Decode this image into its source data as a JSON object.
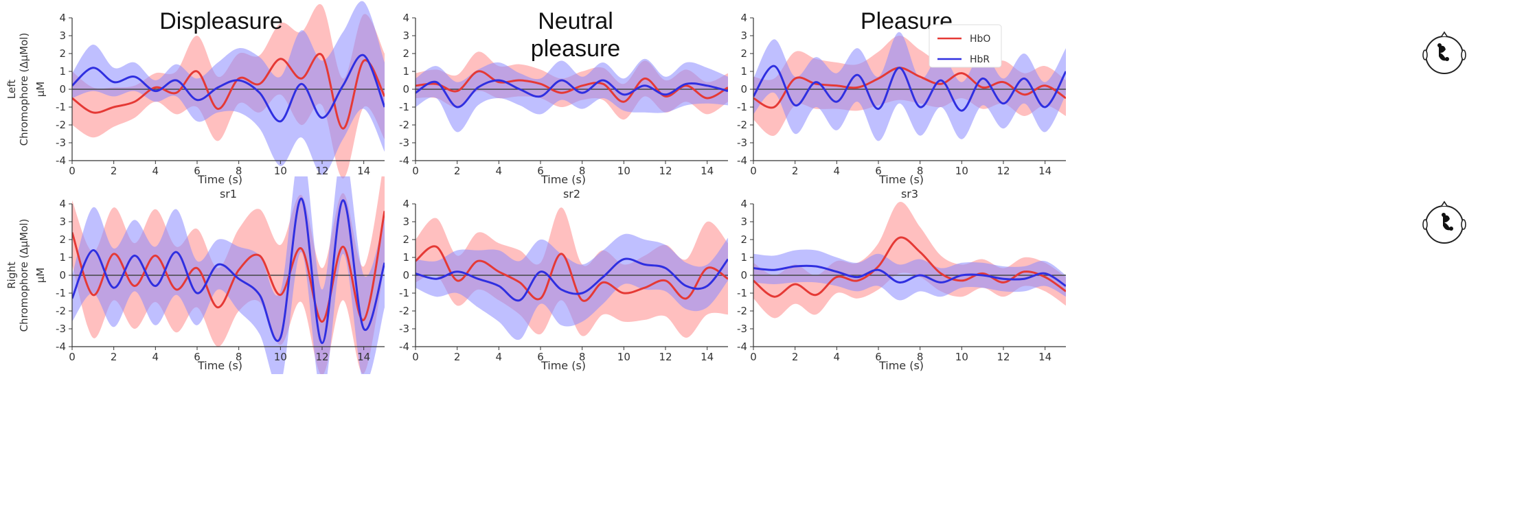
{
  "figure": {
    "condition_titles": [
      "Displeasure",
      "Neutral\npleasure",
      "Pleasure"
    ],
    "row_ylabels": [
      [
        "Left",
        "Chromophore (ΔμMol)",
        "μM"
      ],
      [
        "Right",
        "Chromophore (ΔμMol)",
        "μM"
      ]
    ],
    "subplot_titles": [
      "sr1",
      "sr2",
      "sr3"
    ],
    "legend": [
      {
        "label": "HbO",
        "color": "#e53935"
      },
      {
        "label": "HbR",
        "color": "#2f2fe0"
      }
    ],
    "colors": {
      "hbo": "#e53935",
      "hbo_band": "#ff8a8a",
      "hbr": "#2f2fe0",
      "hbr_band": "#8a8aff",
      "zero_line": "#444444"
    },
    "head_icons": [
      "head-left-hemisphere-icon",
      "head-right-hemisphere-icon"
    ]
  },
  "chart_data": [
    {
      "type": "line",
      "row": "Left",
      "column": "Displeasure",
      "title": "",
      "xlabel": "Time (s)",
      "ylabel": "μM",
      "xlim": [
        0,
        15
      ],
      "ylim": [
        -4,
        4
      ],
      "xticks": [
        0,
        2,
        4,
        6,
        8,
        10,
        12,
        14
      ],
      "yticks": [
        -4,
        -3,
        -2,
        -1,
        0,
        1,
        2,
        3,
        4
      ],
      "x": [
        0,
        1,
        2,
        3,
        4,
        5,
        6,
        7,
        8,
        9,
        10,
        11,
        12,
        13,
        14,
        15
      ],
      "series": [
        {
          "name": "HbO",
          "values": [
            -0.5,
            -1.3,
            -1.0,
            -0.7,
            0.1,
            -0.2,
            1.0,
            -1.1,
            0.6,
            0.3,
            1.7,
            0.6,
            1.9,
            -2.2,
            1.6,
            -0.4
          ],
          "band": [
            1.5,
            1.4,
            1.1,
            0.9,
            0.8,
            1.2,
            2.0,
            1.8,
            1.4,
            1.6,
            2.0,
            2.6,
            2.8,
            2.8,
            2.6,
            2.4
          ]
        },
        {
          "name": "HbR",
          "values": [
            0.2,
            1.2,
            0.4,
            0.7,
            -0.1,
            0.5,
            -0.6,
            0.1,
            0.5,
            -0.2,
            -1.8,
            0.3,
            -1.6,
            0.2,
            1.9,
            -1.0
          ],
          "band": [
            0.7,
            1.3,
            0.8,
            0.8,
            0.6,
            0.9,
            1.2,
            1.4,
            1.8,
            2.0,
            2.5,
            3.0,
            3.2,
            3.0,
            3.0,
            2.5
          ]
        }
      ]
    },
    {
      "type": "line",
      "row": "Left",
      "column": "Neutral pleasure",
      "title": "",
      "xlabel": "Time (s)",
      "ylabel": "μM",
      "xlim": [
        0,
        15
      ],
      "ylim": [
        -4,
        4
      ],
      "xticks": [
        0,
        2,
        4,
        6,
        8,
        10,
        12,
        14
      ],
      "yticks": [
        -4,
        -3,
        -2,
        -1,
        0,
        1,
        2,
        3,
        4
      ],
      "x": [
        0,
        1,
        2,
        3,
        4,
        5,
        6,
        7,
        8,
        9,
        10,
        11,
        12,
        13,
        14,
        15
      ],
      "series": [
        {
          "name": "HbO",
          "values": [
            0.2,
            0.3,
            -0.1,
            1.0,
            0.4,
            0.5,
            0.3,
            -0.2,
            0.2,
            0.3,
            -0.7,
            0.6,
            -0.4,
            0.2,
            -0.5,
            0.1
          ],
          "band": [
            0.7,
            0.8,
            0.9,
            1.1,
            0.9,
            0.9,
            0.8,
            0.8,
            0.8,
            0.9,
            1.0,
            1.0,
            0.9,
            0.9,
            0.9,
            0.8
          ]
        },
        {
          "name": "HbR",
          "values": [
            -0.2,
            0.4,
            -1.0,
            0.1,
            0.5,
            0.0,
            -0.4,
            0.5,
            -0.2,
            0.5,
            -0.3,
            0.2,
            -0.3,
            0.3,
            0.2,
            -0.1
          ],
          "band": [
            0.8,
            0.9,
            1.4,
            1.0,
            1.0,
            0.9,
            1.0,
            1.1,
            0.9,
            1.0,
            0.9,
            1.5,
            1.0,
            1.2,
            1.0,
            0.8
          ]
        }
      ]
    },
    {
      "type": "line",
      "row": "Left",
      "column": "Pleasure",
      "title": "",
      "xlabel": "Time (s)",
      "ylabel": "μM",
      "xlim": [
        0,
        15
      ],
      "ylim": [
        -4,
        4
      ],
      "xticks": [
        0,
        2,
        4,
        6,
        8,
        10,
        12,
        14
      ],
      "yticks": [
        -4,
        -3,
        -2,
        -1,
        0,
        1,
        2,
        3,
        4
      ],
      "x": [
        0,
        1,
        2,
        3,
        4,
        5,
        6,
        7,
        8,
        9,
        10,
        11,
        12,
        13,
        14,
        15
      ],
      "series": [
        {
          "name": "HbO",
          "values": [
            -0.5,
            -1.0,
            0.6,
            0.3,
            0.2,
            0.1,
            0.6,
            1.2,
            0.7,
            0.3,
            0.9,
            0.1,
            0.4,
            -0.3,
            0.2,
            -0.5
          ],
          "band": [
            1.2,
            1.6,
            1.5,
            1.4,
            1.3,
            1.3,
            1.5,
            1.8,
            1.5,
            1.3,
            1.4,
            1.2,
            1.2,
            1.2,
            1.1,
            1.0
          ]
        },
        {
          "name": "HbR",
          "values": [
            -0.4,
            1.3,
            -0.9,
            0.4,
            -0.7,
            0.8,
            -1.1,
            1.2,
            -1.0,
            0.5,
            -1.2,
            0.6,
            -0.8,
            0.6,
            -1.0,
            1.0
          ],
          "band": [
            1.0,
            1.5,
            1.6,
            1.4,
            1.6,
            1.5,
            1.8,
            2.0,
            1.6,
            1.5,
            1.6,
            1.5,
            1.4,
            1.4,
            1.4,
            1.3
          ]
        }
      ]
    },
    {
      "type": "line",
      "row": "Right",
      "column": "Displeasure",
      "title": "sr1",
      "xlabel": "Time (s)",
      "ylabel": "μM",
      "xlim": [
        0,
        15
      ],
      "ylim": [
        -4,
        4
      ],
      "xticks": [
        0,
        2,
        4,
        6,
        8,
        10,
        12,
        14
      ],
      "yticks": [
        -4,
        -3,
        -2,
        -1,
        0,
        1,
        2,
        3,
        4
      ],
      "x": [
        0,
        1,
        2,
        3,
        4,
        5,
        6,
        7,
        8,
        9,
        10,
        11,
        12,
        13,
        14,
        15
      ],
      "series": [
        {
          "name": "HbO",
          "values": [
            2.4,
            -1.1,
            1.2,
            -0.6,
            1.1,
            -0.8,
            0.4,
            -1.8,
            0.3,
            1.1,
            -1.1,
            1.5,
            -2.6,
            1.6,
            -2.5,
            3.6
          ],
          "band": [
            1.8,
            2.4,
            2.6,
            2.4,
            2.6,
            2.4,
            2.2,
            2.2,
            2.3,
            2.6,
            2.8,
            3.0,
            3.0,
            3.0,
            3.0,
            3.0
          ]
        },
        {
          "name": "HbR",
          "values": [
            -1.3,
            1.4,
            -0.7,
            1.1,
            -0.6,
            1.3,
            -1.0,
            0.6,
            -0.2,
            -1.1,
            -3.5,
            4.3,
            -3.8,
            4.2,
            -3.0,
            0.7
          ],
          "band": [
            1.3,
            2.4,
            2.2,
            2.0,
            2.2,
            2.4,
            1.8,
            1.4,
            1.8,
            2.2,
            2.6,
            3.0,
            3.0,
            3.0,
            3.0,
            2.5
          ]
        }
      ]
    },
    {
      "type": "line",
      "row": "Right",
      "column": "Neutral pleasure",
      "title": "sr2",
      "xlabel": "Time (s)",
      "ylabel": "μM",
      "xlim": [
        0,
        15
      ],
      "ylim": [
        -4,
        4
      ],
      "xticks": [
        0,
        2,
        4,
        6,
        8,
        10,
        12,
        14
      ],
      "yticks": [
        -4,
        -3,
        -2,
        -1,
        0,
        1,
        2,
        3,
        4
      ],
      "x": [
        0,
        1,
        2,
        3,
        4,
        5,
        6,
        7,
        8,
        9,
        10,
        11,
        12,
        13,
        14,
        15
      ],
      "series": [
        {
          "name": "HbO",
          "values": [
            0.8,
            1.6,
            -0.3,
            0.8,
            0.2,
            -0.4,
            -1.3,
            1.2,
            -1.4,
            -0.4,
            -1.0,
            -0.7,
            -0.3,
            -1.3,
            0.4,
            -0.2
          ],
          "band": [
            1.2,
            1.6,
            1.4,
            1.6,
            1.6,
            1.8,
            2.0,
            2.6,
            2.0,
            1.8,
            1.6,
            1.8,
            2.0,
            2.2,
            2.6,
            2.0
          ]
        },
        {
          "name": "HbR",
          "values": [
            0.1,
            -0.2,
            0.2,
            -0.2,
            -0.6,
            -1.4,
            0.2,
            -0.8,
            -1.0,
            -0.1,
            0.9,
            0.6,
            0.4,
            -0.6,
            -0.6,
            0.9
          ],
          "band": [
            0.8,
            1.0,
            1.2,
            1.6,
            2.0,
            2.2,
            1.8,
            2.0,
            1.6,
            1.5,
            1.4,
            1.4,
            1.3,
            1.3,
            1.2,
            1.2
          ]
        }
      ]
    },
    {
      "type": "line",
      "row": "Right",
      "column": "Pleasure",
      "title": "sr3",
      "xlabel": "Time (s)",
      "ylabel": "μM",
      "xlim": [
        0,
        15
      ],
      "ylim": [
        -4,
        4
      ],
      "xticks": [
        0,
        2,
        4,
        6,
        8,
        10,
        12,
        14
      ],
      "yticks": [
        -4,
        -3,
        -2,
        -1,
        0,
        1,
        2,
        3,
        4
      ],
      "x": [
        0,
        1,
        2,
        3,
        4,
        5,
        6,
        7,
        8,
        9,
        10,
        11,
        12,
        13,
        14,
        15
      ],
      "series": [
        {
          "name": "HbO",
          "values": [
            -0.3,
            -1.2,
            -0.5,
            -1.1,
            -0.1,
            -0.3,
            0.5,
            2.1,
            1.3,
            0.1,
            -0.3,
            0.1,
            -0.4,
            0.2,
            -0.1,
            -0.9
          ],
          "band": [
            1.0,
            1.2,
            1.1,
            1.1,
            0.9,
            1.0,
            1.3,
            2.0,
            1.4,
            1.0,
            0.9,
            0.8,
            0.8,
            0.8,
            0.8,
            0.8
          ]
        },
        {
          "name": "HbR",
          "values": [
            0.4,
            0.3,
            0.5,
            0.5,
            0.2,
            -0.1,
            0.3,
            -0.4,
            0.0,
            -0.4,
            0.0,
            0.0,
            -0.2,
            -0.2,
            0.1,
            -0.6
          ],
          "band": [
            0.8,
            0.8,
            0.9,
            0.9,
            0.8,
            0.8,
            0.9,
            1.0,
            0.9,
            0.8,
            0.7,
            0.7,
            0.7,
            0.7,
            0.7,
            0.6
          ]
        }
      ]
    }
  ]
}
